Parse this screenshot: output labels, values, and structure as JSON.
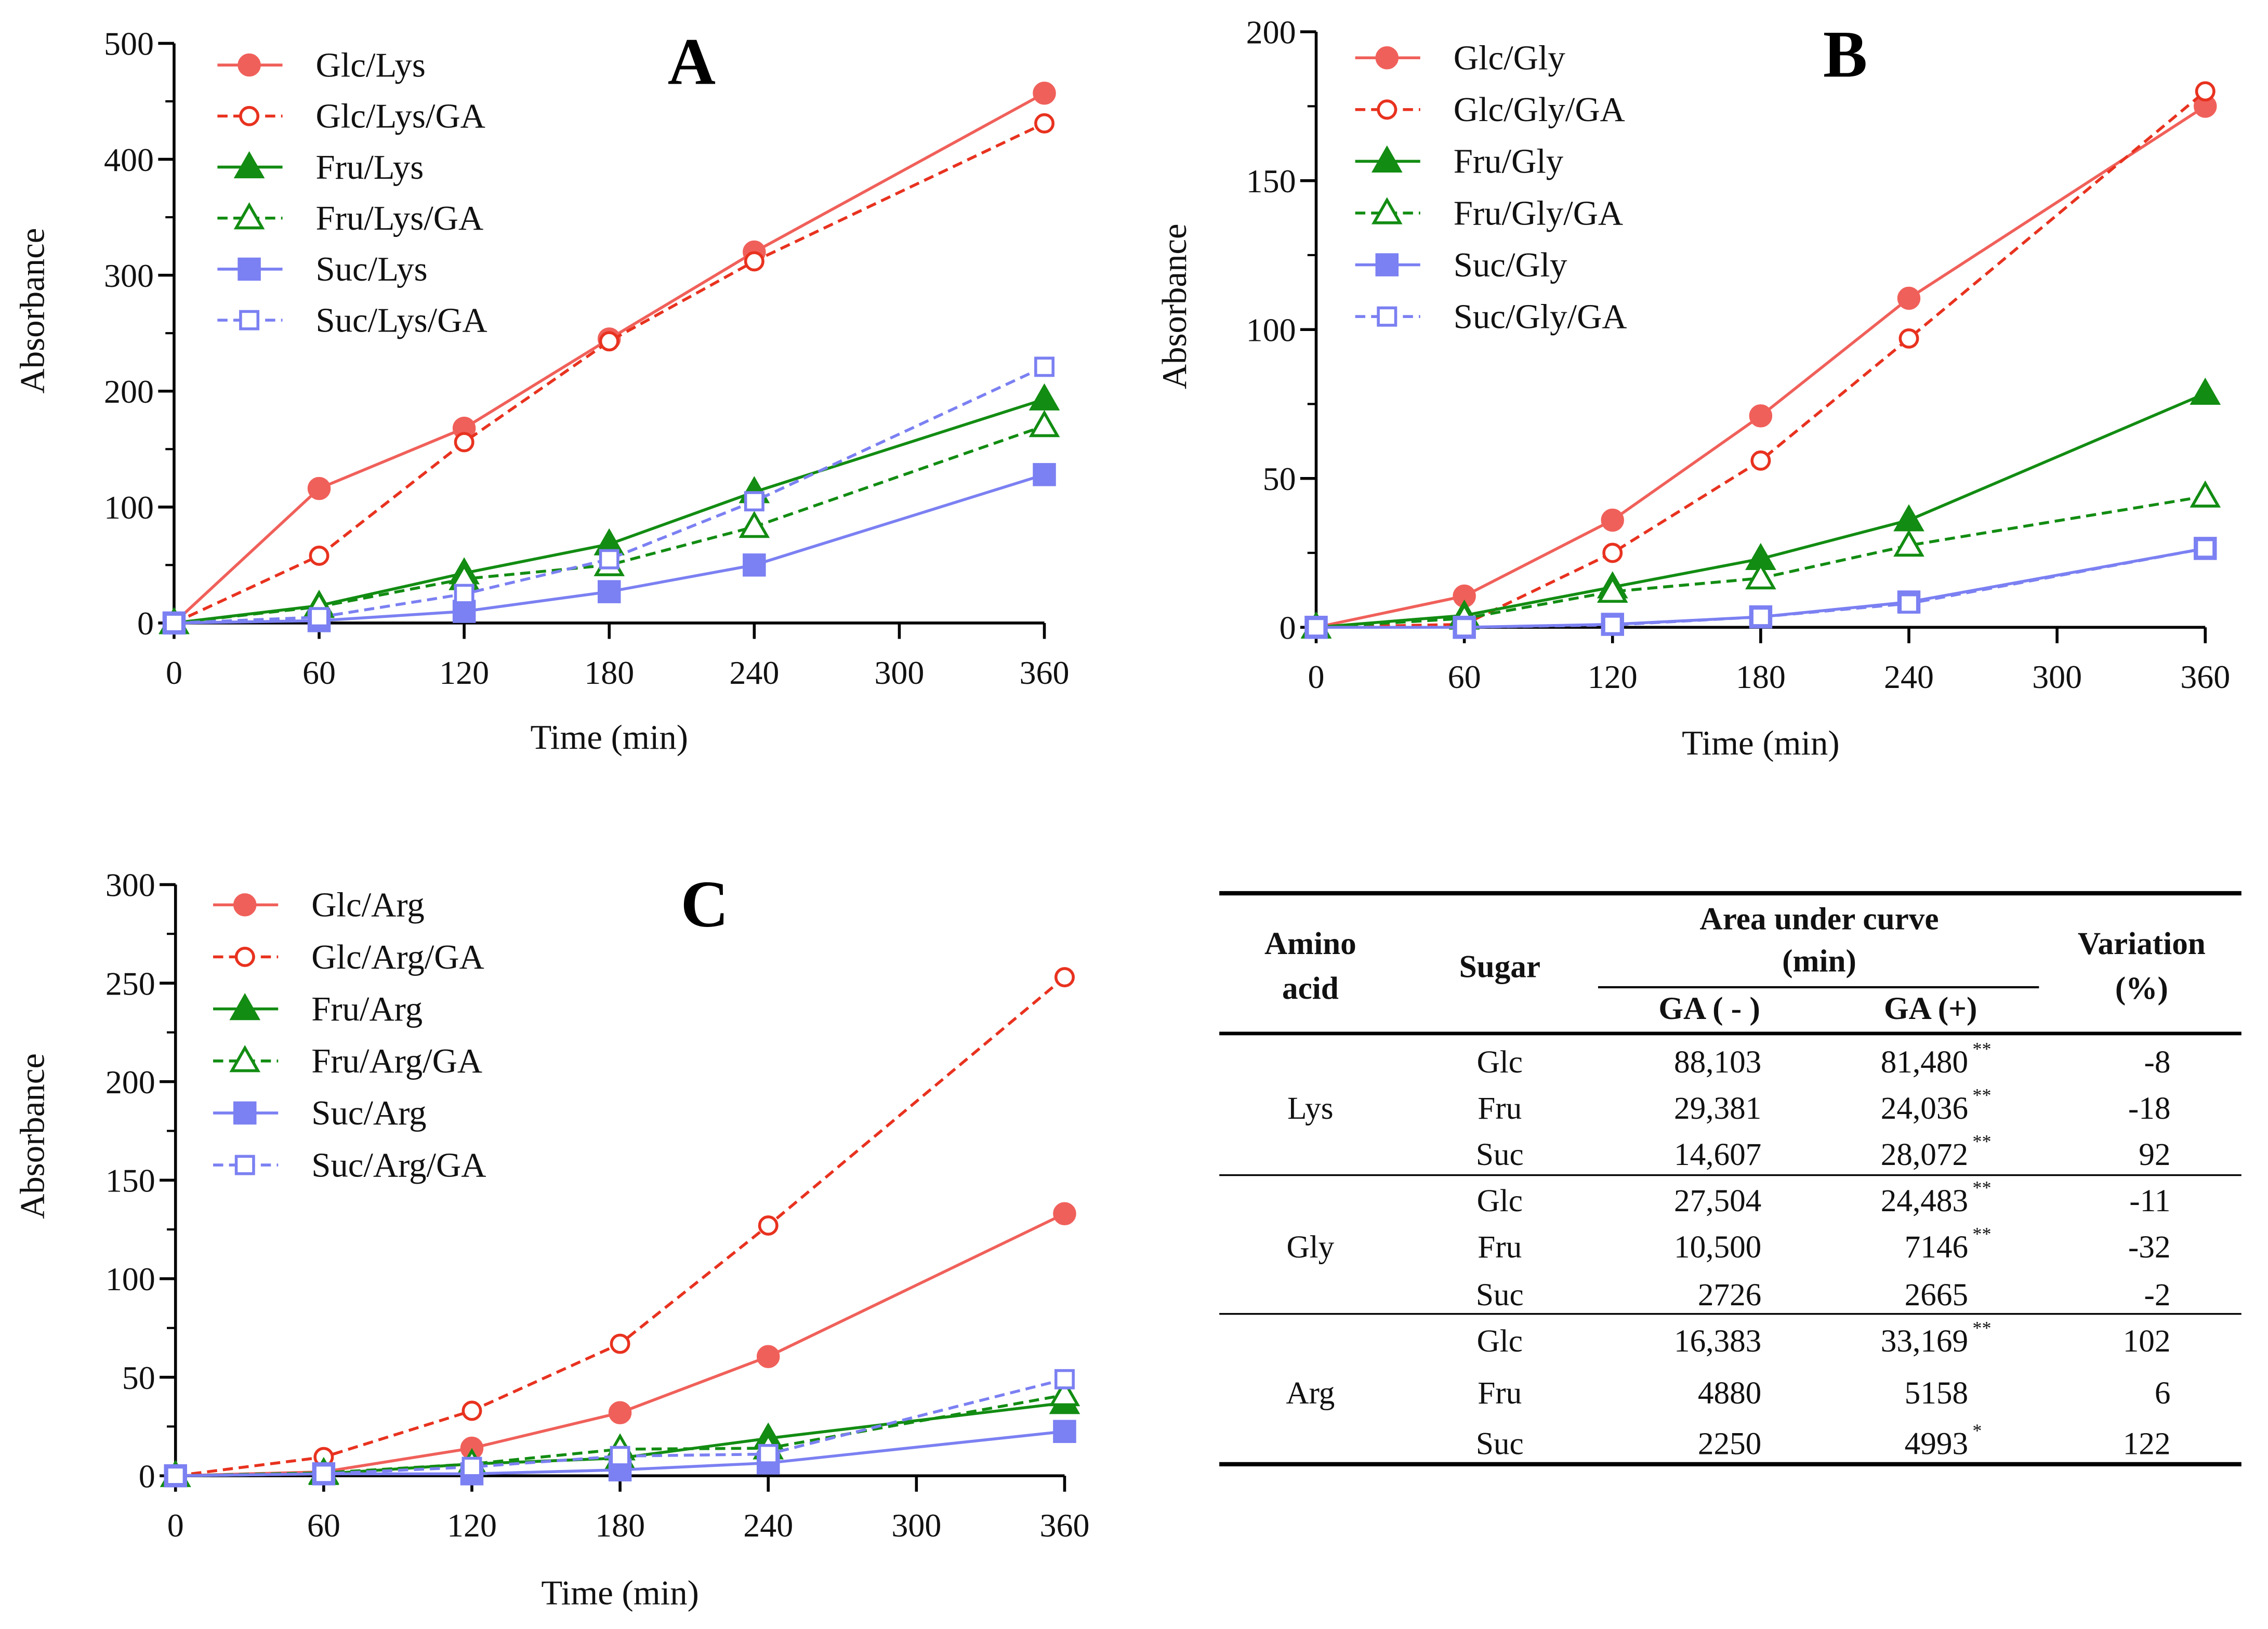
{
  "colors": {
    "glc": "#f0605a",
    "glc_ga": "#e8321f",
    "fru": "#128c12",
    "fru_ga": "#128c12",
    "suc": "#7b80f2",
    "suc_ga": "#7b80f2"
  },
  "chart_data": [
    {
      "type": "line",
      "panel": "A",
      "xlabel": "Time (min)",
      "ylabel": "Absorbance",
      "xlim": [
        0,
        360
      ],
      "ylim": [
        0,
        500
      ],
      "xticks": [
        0,
        60,
        120,
        180,
        240,
        300,
        360
      ],
      "yticks": [
        0,
        100,
        200,
        300,
        400,
        500
      ],
      "legend": "top-left",
      "x": [
        0,
        60,
        120,
        180,
        240,
        360
      ],
      "series": [
        {
          "name": "Glc/Lys",
          "key": "glc",
          "values": [
            0,
            116,
            168,
            245,
            320,
            457
          ]
        },
        {
          "name": "Glc/Lys/GA",
          "key": "glc_ga",
          "values": [
            0,
            58,
            156,
            243,
            312,
            431
          ]
        },
        {
          "name": "Fru/Lys",
          "key": "fru",
          "values": [
            0,
            15,
            43,
            68,
            113,
            193
          ]
        },
        {
          "name": "Fru/Lys/GA",
          "key": "fru_ga",
          "values": [
            0,
            14,
            38,
            50,
            83,
            170
          ]
        },
        {
          "name": "Suc/Lys",
          "key": "suc",
          "values": [
            0,
            2,
            10,
            27,
            50,
            128
          ]
        },
        {
          "name": "Suc/Lys/GA",
          "key": "suc_ga",
          "values": [
            0,
            5,
            25,
            55,
            105,
            221
          ]
        }
      ]
    },
    {
      "type": "line",
      "panel": "B",
      "xlabel": "Time (min)",
      "ylabel": "Absorbance",
      "xlim": [
        0,
        360
      ],
      "ylim": [
        0,
        200
      ],
      "xticks": [
        0,
        60,
        120,
        180,
        240,
        300,
        360
      ],
      "yticks": [
        0,
        50,
        100,
        150,
        200
      ],
      "legend": "top-left",
      "x": [
        0,
        60,
        120,
        180,
        240,
        360
      ],
      "series": [
        {
          "name": "Glc/Gly",
          "key": "glc",
          "values": [
            0,
            10.5,
            36,
            71,
            110.5,
            175
          ]
        },
        {
          "name": "Glc/Gly/GA",
          "key": "glc_ga",
          "values": [
            0,
            1,
            25,
            56,
            97,
            180
          ]
        },
        {
          "name": "Fru/Gly",
          "key": "fru",
          "values": [
            0,
            4,
            13.5,
            23,
            36,
            78.5
          ]
        },
        {
          "name": "Fru/Gly/GA",
          "key": "fru_ga",
          "values": [
            0,
            3,
            12,
            16.5,
            27.5,
            44
          ]
        },
        {
          "name": "Suc/Gly",
          "key": "suc",
          "values": [
            0,
            0,
            1,
            3.5,
            8.5,
            26.5
          ]
        },
        {
          "name": "Suc/Gly/GA",
          "key": "suc_ga",
          "values": [
            0,
            0,
            0.8,
            3.5,
            8,
            26.5
          ]
        }
      ]
    },
    {
      "type": "line",
      "panel": "C",
      "xlabel": "Time (min)",
      "ylabel": "Absorbance",
      "xlim": [
        0,
        360
      ],
      "ylim": [
        0,
        300
      ],
      "xticks": [
        0,
        60,
        120,
        180,
        240,
        300,
        360
      ],
      "yticks": [
        0,
        50,
        100,
        150,
        200,
        250,
        300
      ],
      "legend": "top-left",
      "x": [
        0,
        60,
        120,
        180,
        240,
        360
      ],
      "series": [
        {
          "name": "Glc/Arg",
          "key": "glc",
          "values": [
            0,
            2,
            14,
            32,
            60.5,
            133
          ]
        },
        {
          "name": "Glc/Arg/GA",
          "key": "glc_ga",
          "values": [
            0,
            9.5,
            33,
            67,
            127,
            253
          ]
        },
        {
          "name": "Fru/Arg",
          "key": "fru",
          "values": [
            0,
            1,
            6,
            9,
            19,
            37
          ]
        },
        {
          "name": "Fru/Arg/GA",
          "key": "fru_ga",
          "values": [
            0,
            1.5,
            6,
            13.5,
            14,
            41
          ]
        },
        {
          "name": "Suc/Arg",
          "key": "suc",
          "values": [
            0,
            1,
            1,
            3,
            6.5,
            22.5
          ]
        },
        {
          "name": "Suc/Arg/GA",
          "key": "suc_ga",
          "values": [
            0,
            1,
            4.5,
            10,
            11,
            49
          ]
        }
      ]
    },
    {
      "type": "table",
      "headers": {
        "amino_1": "Amino",
        "amino_2": "acid",
        "sugar": "Sugar",
        "auc_1": "Area under curve",
        "auc_2": "(min)",
        "ga_minus": "GA ( - )",
        "ga_plus": "GA (+)",
        "var_1": "Variation",
        "var_2": "(%)"
      },
      "groups": [
        {
          "amino_acid": "Lys",
          "rows": [
            {
              "sugar": "Glc",
              "ga_minus": "88,103",
              "ga_plus": "81,480",
              "sig": "**",
              "variation": "-8"
            },
            {
              "sugar": "Fru",
              "ga_minus": "29,381",
              "ga_plus": "24,036",
              "sig": "**",
              "variation": "-18"
            },
            {
              "sugar": "Suc",
              "ga_minus": "14,607",
              "ga_plus": "28,072",
              "sig": "**",
              "variation": "92"
            }
          ]
        },
        {
          "amino_acid": "Gly",
          "rows": [
            {
              "sugar": "Glc",
              "ga_minus": "27,504",
              "ga_plus": "24,483",
              "sig": "**",
              "variation": "-11"
            },
            {
              "sugar": "Fru",
              "ga_minus": "10,500",
              "ga_plus": "7146",
              "sig": "**",
              "variation": "-32"
            },
            {
              "sugar": "Suc",
              "ga_minus": "2726",
              "ga_plus": "2665",
              "sig": "",
              "variation": "-2"
            }
          ]
        },
        {
          "amino_acid": "Arg",
          "rows": [
            {
              "sugar": "Glc",
              "ga_minus": "16,383",
              "ga_plus": "33,169",
              "sig": "**",
              "variation": "102"
            },
            {
              "sugar": "Fru",
              "ga_minus": "4880",
              "ga_plus": "5158",
              "sig": "",
              "variation": "6"
            },
            {
              "sugar": "Suc",
              "ga_minus": "2250",
              "ga_plus": "4993",
              "sig": "*",
              "variation": "122"
            }
          ]
        }
      ]
    }
  ]
}
